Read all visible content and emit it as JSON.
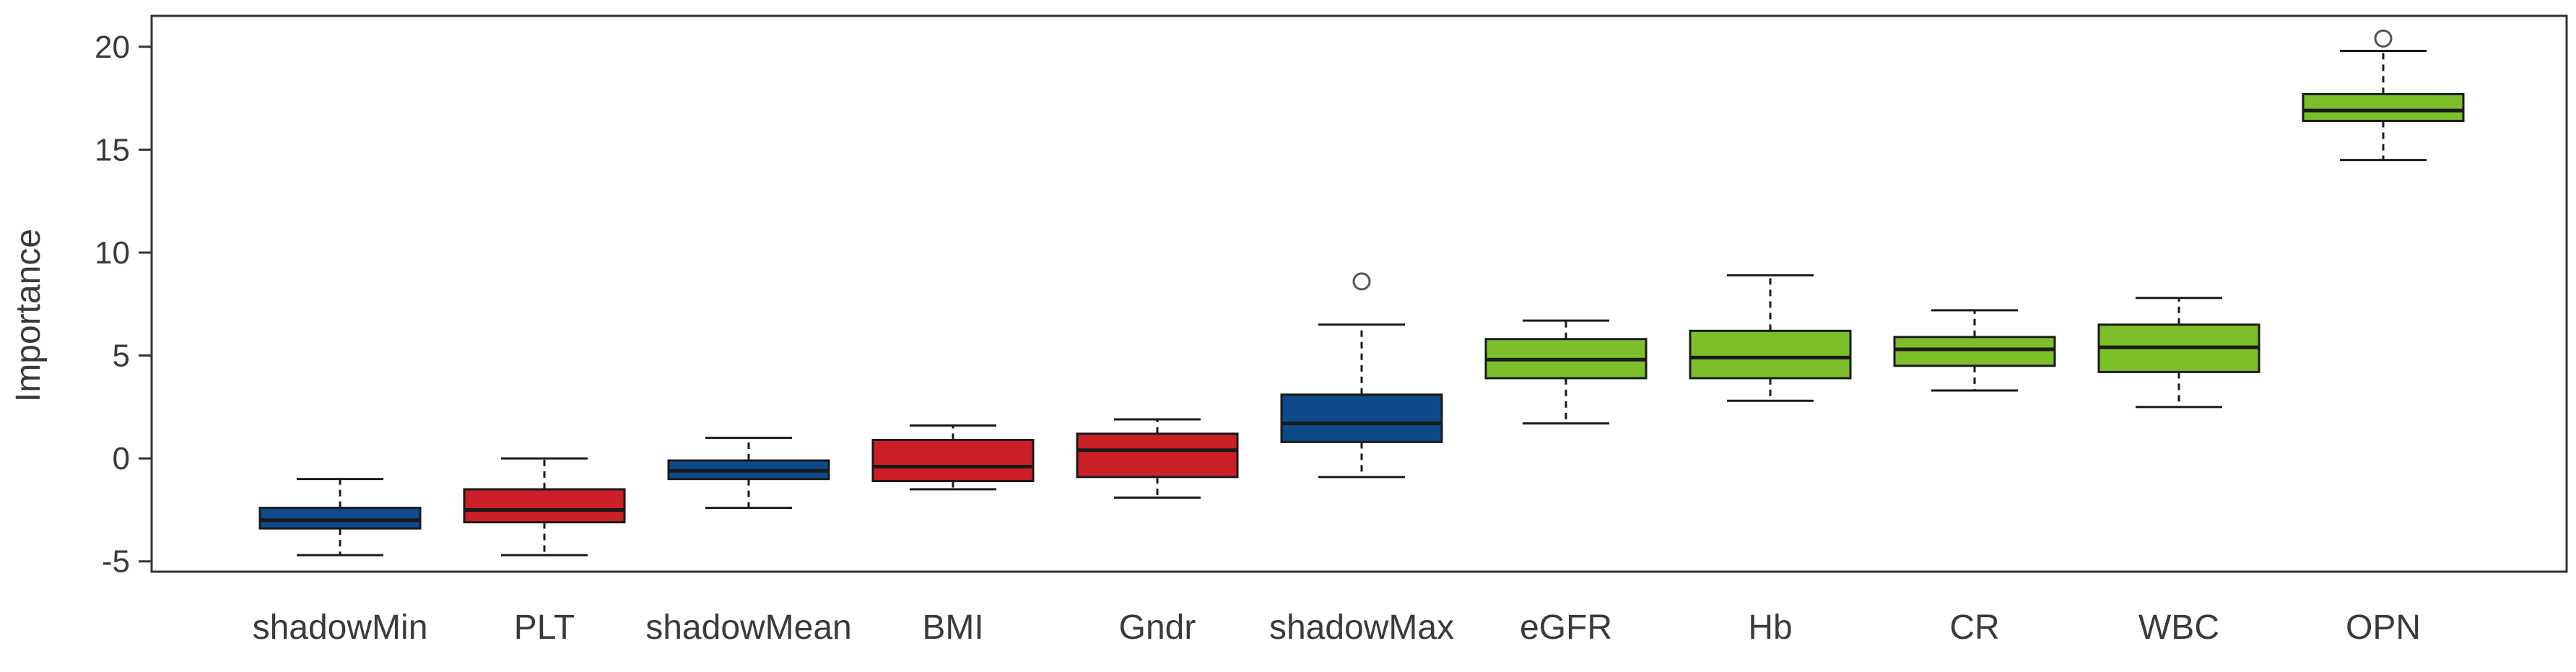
{
  "chart_data": {
    "type": "box",
    "ylabel": "Importance",
    "ylim": [
      -5.5,
      21.5
    ],
    "yticks": [
      20,
      15,
      10,
      5,
      0,
      -5
    ],
    "ytick_labels": [
      "20",
      "15",
      "10",
      "5",
      "0",
      "-5"
    ],
    "grid": false,
    "colors": {
      "shadow": "#0d4a8a",
      "rejected": "#cc1f27",
      "confirmed": "#7cbf2b",
      "outline": "#1a1a1a",
      "frame": "#333333"
    },
    "boxes": [
      {
        "name": "shadowMin",
        "group": "shadow",
        "whisker_low": -4.7,
        "q1": -3.4,
        "median": -3.0,
        "q3": -2.4,
        "whisker_high": -1.0,
        "outliers": []
      },
      {
        "name": "PLT",
        "group": "rejected",
        "whisker_low": -4.7,
        "q1": -3.1,
        "median": -2.5,
        "q3": -1.5,
        "whisker_high": 0.0,
        "outliers": []
      },
      {
        "name": "shadowMean",
        "group": "shadow",
        "whisker_low": -2.4,
        "q1": -1.0,
        "median": -0.6,
        "q3": -0.1,
        "whisker_high": 1.0,
        "outliers": []
      },
      {
        "name": "BMI",
        "group": "rejected",
        "whisker_low": -1.5,
        "q1": -1.1,
        "median": -0.4,
        "q3": 0.9,
        "whisker_high": 1.6,
        "outliers": []
      },
      {
        "name": "Gndr",
        "group": "rejected",
        "whisker_low": -1.9,
        "q1": -0.9,
        "median": 0.4,
        "q3": 1.2,
        "whisker_high": 1.9,
        "outliers": []
      },
      {
        "name": "shadowMax",
        "group": "shadow",
        "whisker_low": -0.9,
        "q1": 0.8,
        "median": 1.7,
        "q3": 3.1,
        "whisker_high": 6.5,
        "outliers": [
          8.6
        ]
      },
      {
        "name": "eGFR",
        "group": "confirmed",
        "whisker_low": 1.7,
        "q1": 3.9,
        "median": 4.8,
        "q3": 5.8,
        "whisker_high": 6.7,
        "outliers": []
      },
      {
        "name": "Hb",
        "group": "confirmed",
        "whisker_low": 2.8,
        "q1": 3.9,
        "median": 4.9,
        "q3": 6.2,
        "whisker_high": 8.9,
        "outliers": []
      },
      {
        "name": "CR",
        "group": "confirmed",
        "whisker_low": 3.3,
        "q1": 4.5,
        "median": 5.3,
        "q3": 5.9,
        "whisker_high": 7.2,
        "outliers": []
      },
      {
        "name": "WBC",
        "group": "confirmed",
        "whisker_low": 2.5,
        "q1": 4.2,
        "median": 5.4,
        "q3": 6.5,
        "whisker_high": 7.8,
        "outliers": []
      },
      {
        "name": "OPN",
        "group": "confirmed",
        "whisker_low": 14.5,
        "q1": 16.4,
        "median": 16.9,
        "q3": 17.7,
        "whisker_high": 19.8,
        "outliers": [
          20.4
        ]
      }
    ]
  }
}
